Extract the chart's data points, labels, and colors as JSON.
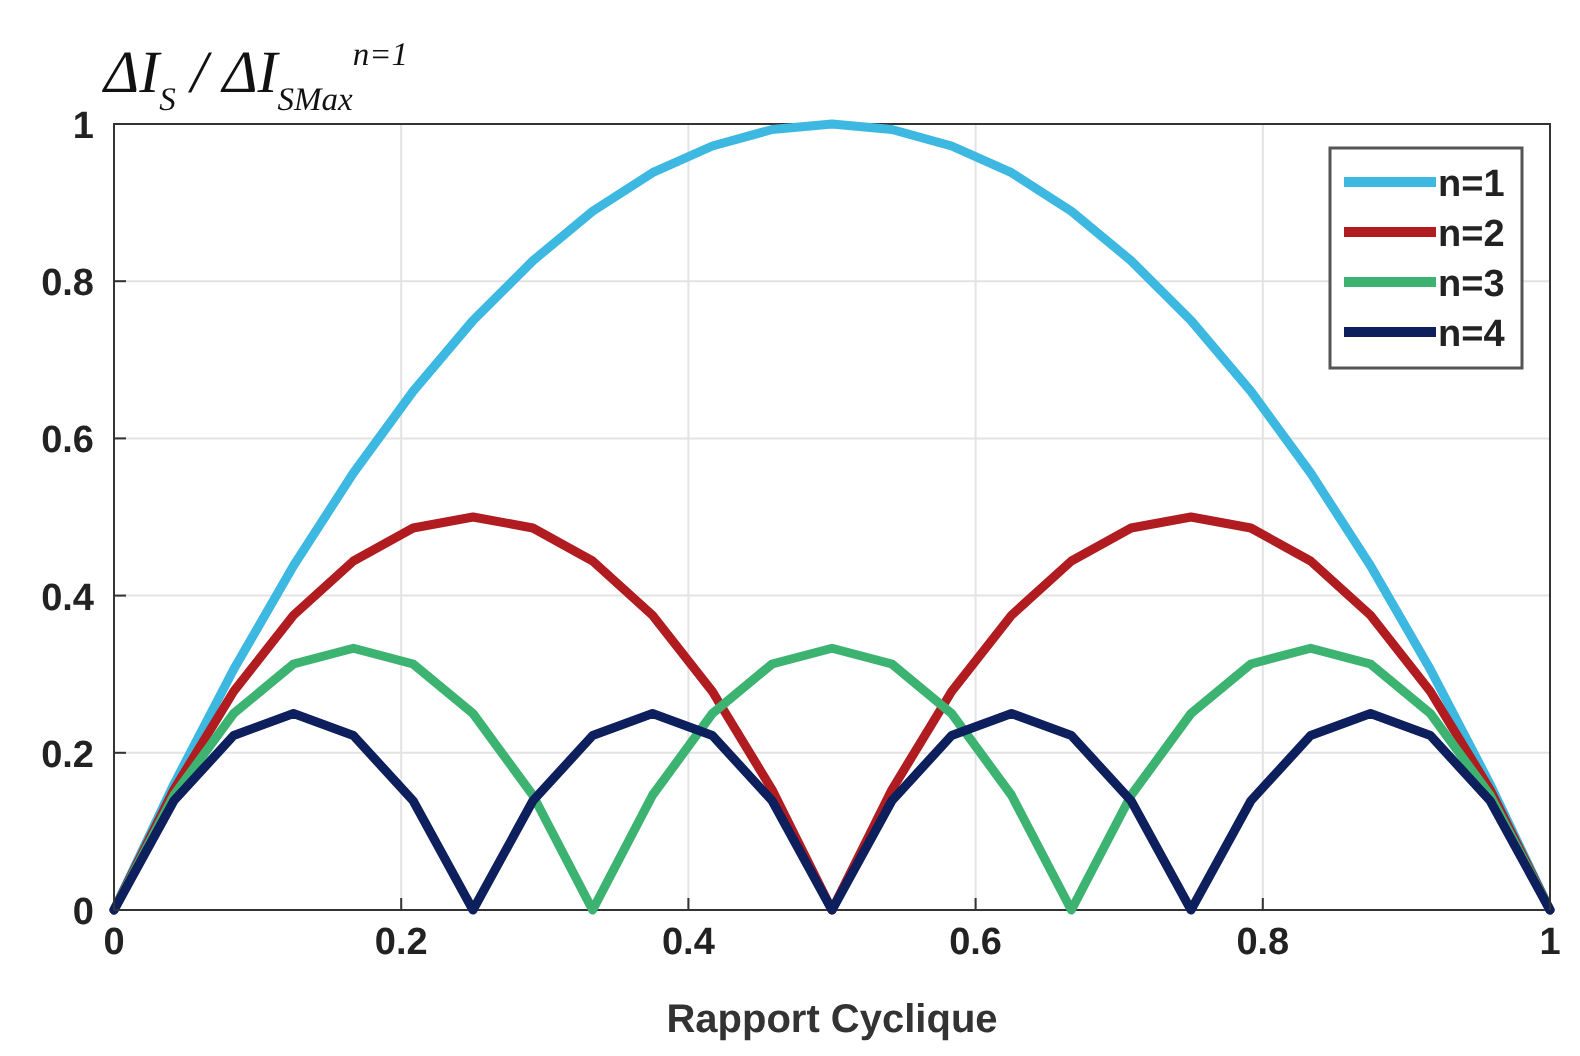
{
  "chart_data": {
    "type": "line",
    "ylabel": "ΔI$_{S}$ / ΔI$_{SMax}$$^{n=1}$",
    "xlabel": "Rapport Cyclique",
    "x": [
      0,
      0.0417,
      0.0833,
      0.125,
      0.1667,
      0.2083,
      0.25,
      0.2917,
      0.3333,
      0.375,
      0.4167,
      0.4583,
      0.5,
      0.5417,
      0.5833,
      0.625,
      0.6667,
      0.7083,
      0.75,
      0.7917,
      0.8333,
      0.875,
      0.9167,
      0.9583,
      1
    ],
    "series": [
      {
        "name": "n=1",
        "color": "#3db8e0",
        "values": [
          0,
          0.16,
          0.306,
          0.438,
          0.556,
          0.66,
          0.75,
          0.826,
          0.889,
          0.938,
          0.972,
          0.993,
          1,
          0.993,
          0.972,
          0.938,
          0.889,
          0.826,
          0.75,
          0.66,
          0.556,
          0.438,
          0.306,
          0.16,
          0
        ]
      },
      {
        "name": "n=2",
        "color": "#b01c20",
        "values": [
          0,
          0.153,
          0.278,
          0.375,
          0.444,
          0.486,
          0.5,
          0.486,
          0.444,
          0.375,
          0.278,
          0.153,
          0,
          0.153,
          0.278,
          0.375,
          0.444,
          0.486,
          0.5,
          0.486,
          0.444,
          0.375,
          0.278,
          0.153,
          0
        ]
      },
      {
        "name": "n=3",
        "color": "#3cb371",
        "values": [
          0,
          0.146,
          0.25,
          0.313,
          0.333,
          0.313,
          0.25,
          0.146,
          0,
          0.146,
          0.25,
          0.313,
          0.333,
          0.313,
          0.25,
          0.146,
          0,
          0.146,
          0.25,
          0.313,
          0.333,
          0.313,
          0.25,
          0.146,
          0
        ]
      },
      {
        "name": "n=4",
        "color": "#0d1f5c",
        "values": [
          0,
          0.139,
          0.222,
          0.25,
          0.222,
          0.139,
          0,
          0.139,
          0.222,
          0.25,
          0.222,
          0.139,
          0,
          0.139,
          0.222,
          0.25,
          0.222,
          0.139,
          0,
          0.139,
          0.222,
          0.25,
          0.222,
          0.139,
          0
        ]
      }
    ],
    "xlim": [
      0,
      1
    ],
    "xticks": [
      0,
      0.2,
      0.4,
      0.6,
      0.8,
      1
    ],
    "ylim": [
      0,
      1
    ],
    "yticks": [
      0,
      0.2,
      0.4,
      0.6,
      0.8,
      1
    ],
    "grid": true,
    "legend": "top right",
    "line_style": "solid",
    "marker": "none"
  }
}
